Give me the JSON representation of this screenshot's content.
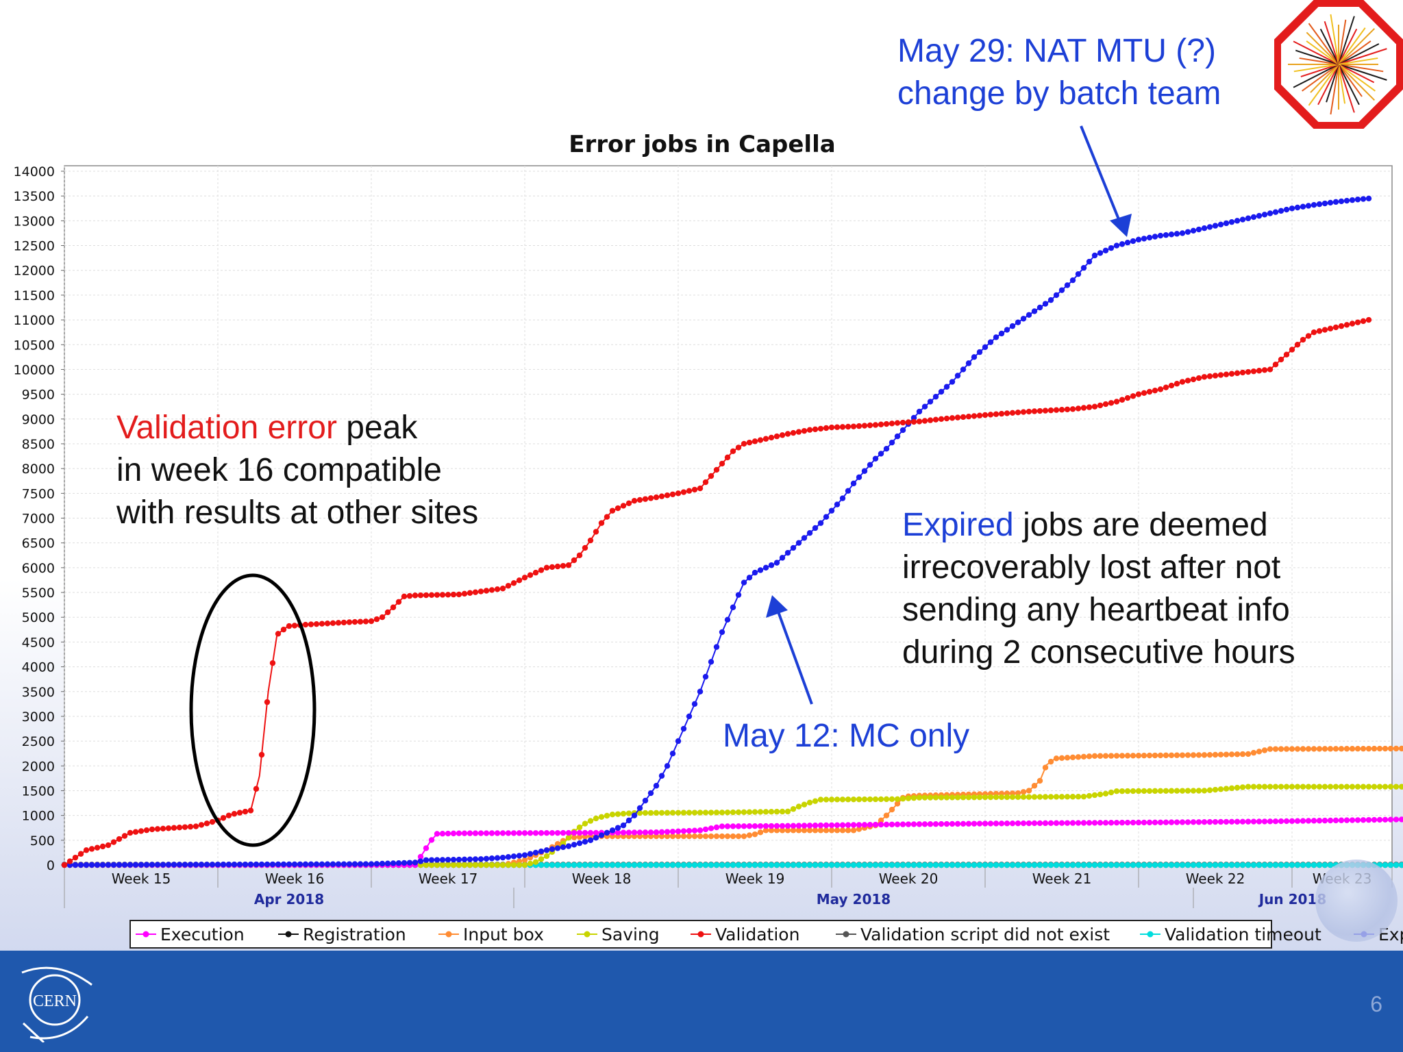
{
  "slide": {
    "number": "6",
    "annotations": {
      "nat_mtu": {
        "line1": "May 29: NAT MTU (?)",
        "line2": "change by batch team"
      },
      "validation_note": {
        "red_part": "Validation error",
        "rest_line1": " peak",
        "line2": "in week 16 compatible",
        "line3": "with results at other sites"
      },
      "expired_note": {
        "blue_part": "Expired",
        "rest_line1": " jobs are deemed",
        "line2": "irrecoverably lost after not",
        "line3": "sending any heartbeat info",
        "line4": "during 2 consecutive hours"
      },
      "may12": "May 12: MC only"
    },
    "logos": {
      "cern_text": "CERN"
    }
  },
  "chart_data": {
    "type": "line",
    "title": "Error jobs in Capella",
    "xlabel": "",
    "ylabel": "",
    "x_unit": "days since Apr 8 2018",
    "x_range": [
      0,
      61
    ],
    "ylim": [
      0,
      14000
    ],
    "yticks": [
      0,
      500,
      1000,
      1500,
      2000,
      2500,
      3000,
      3500,
      4000,
      4500,
      5000,
      5500,
      6000,
      6500,
      7000,
      7500,
      8000,
      8500,
      9000,
      9500,
      10000,
      10500,
      11000,
      11500,
      12000,
      12500,
      13000,
      13500,
      14000
    ],
    "week_ticks": [
      {
        "label": "Week 15",
        "start": 0,
        "end": 7
      },
      {
        "label": "Week 16",
        "start": 7,
        "end": 14
      },
      {
        "label": "Week 17",
        "start": 14,
        "end": 21
      },
      {
        "label": "Week 18",
        "start": 21,
        "end": 28
      },
      {
        "label": "Week 19",
        "start": 28,
        "end": 35
      },
      {
        "label": "Week 20",
        "start": 35,
        "end": 42
      },
      {
        "label": "Week 21",
        "start": 42,
        "end": 49
      },
      {
        "label": "Week 22",
        "start": 49,
        "end": 56
      },
      {
        "label": "Week 23",
        "start": 56,
        "end": 61
      }
    ],
    "months": [
      {
        "label": "Apr 2018",
        "start": 0,
        "end": 20.5
      },
      {
        "label": "May 2018",
        "start": 20.5,
        "end": 51.5
      },
      {
        "label": "Jun 2018",
        "start": 51.5,
        "end": 61
      }
    ],
    "grid": true,
    "legend_position": "bottom",
    "series": [
      {
        "name": "Execution",
        "color": "#ff00ff",
        "points": [
          [
            0,
            0
          ],
          [
            16,
            0
          ],
          [
            16.3,
            200
          ],
          [
            16.7,
            480
          ],
          [
            17,
            630
          ],
          [
            18,
            640
          ],
          [
            24,
            650
          ],
          [
            27,
            660
          ],
          [
            29,
            700
          ],
          [
            30,
            780
          ],
          [
            33,
            790
          ],
          [
            34.5,
            800
          ],
          [
            38,
            820
          ],
          [
            43,
            840
          ],
          [
            50,
            860
          ],
          [
            55,
            880
          ],
          [
            61,
            920
          ]
        ]
      },
      {
        "name": "Registration",
        "color": "#111111",
        "points": [
          [
            0,
            0
          ],
          [
            61,
            0
          ]
        ]
      },
      {
        "name": "Input box",
        "color": "#ff8c33",
        "points": [
          [
            0,
            0
          ],
          [
            20,
            0
          ],
          [
            21,
            100
          ],
          [
            22,
            300
          ],
          [
            23,
            550
          ],
          [
            24,
            580
          ],
          [
            31,
            580
          ],
          [
            31.5,
            620
          ],
          [
            32,
            700
          ],
          [
            36,
            700
          ],
          [
            37,
            800
          ],
          [
            37.5,
            1000
          ],
          [
            38.3,
            1380
          ],
          [
            39,
            1400
          ],
          [
            43.5,
            1450
          ],
          [
            44,
            1500
          ],
          [
            44.5,
            1700
          ],
          [
            44.8,
            2020
          ],
          [
            45.2,
            2150
          ],
          [
            47,
            2200
          ],
          [
            52,
            2220
          ],
          [
            54,
            2240
          ],
          [
            55,
            2340
          ],
          [
            61,
            2350
          ]
        ]
      },
      {
        "name": "Saving",
        "color": "#c8d400",
        "points": [
          [
            0,
            0
          ],
          [
            21,
            0
          ],
          [
            21.5,
            60
          ],
          [
            22,
            180
          ],
          [
            22.8,
            450
          ],
          [
            23.3,
            700
          ],
          [
            23.8,
            850
          ],
          [
            24.3,
            950
          ],
          [
            25,
            1020
          ],
          [
            26,
            1050
          ],
          [
            30,
            1060
          ],
          [
            33,
            1080
          ],
          [
            33.5,
            1180
          ],
          [
            34,
            1260
          ],
          [
            34.5,
            1320
          ],
          [
            38,
            1330
          ],
          [
            39,
            1360
          ],
          [
            43,
            1370
          ],
          [
            46.5,
            1380
          ],
          [
            47,
            1410
          ],
          [
            47.5,
            1440
          ],
          [
            48,
            1490
          ],
          [
            52,
            1500
          ],
          [
            53,
            1540
          ],
          [
            54,
            1580
          ],
          [
            61,
            1580
          ]
        ]
      },
      {
        "name": "Validation",
        "color": "#ee1111",
        "points": [
          [
            0,
            0
          ],
          [
            0.5,
            150
          ],
          [
            1,
            300
          ],
          [
            2,
            400
          ],
          [
            3,
            650
          ],
          [
            4,
            720
          ],
          [
            5,
            750
          ],
          [
            6,
            780
          ],
          [
            7,
            900
          ],
          [
            7.6,
            1020
          ],
          [
            8.5,
            1100
          ],
          [
            8.9,
            1800
          ],
          [
            9.3,
            3500
          ],
          [
            9.7,
            4650
          ],
          [
            10.2,
            4820
          ],
          [
            11,
            4850
          ],
          [
            13,
            4900
          ],
          [
            14,
            4920
          ],
          [
            14.5,
            5000
          ],
          [
            15,
            5200
          ],
          [
            15.5,
            5420
          ],
          [
            16,
            5440
          ],
          [
            18,
            5460
          ],
          [
            20,
            5580
          ],
          [
            21,
            5800
          ],
          [
            22,
            6000
          ],
          [
            23,
            6050
          ],
          [
            23.5,
            6250
          ],
          [
            24,
            6550
          ],
          [
            24.5,
            6900
          ],
          [
            25,
            7150
          ],
          [
            25.5,
            7250
          ],
          [
            26,
            7350
          ],
          [
            27,
            7420
          ],
          [
            28,
            7500
          ],
          [
            29,
            7600
          ],
          [
            29.5,
            7850
          ],
          [
            30,
            8100
          ],
          [
            30.5,
            8350
          ],
          [
            31,
            8500
          ],
          [
            32,
            8600
          ],
          [
            33,
            8700
          ],
          [
            34,
            8780
          ],
          [
            35,
            8830
          ],
          [
            36,
            8850
          ],
          [
            37,
            8880
          ],
          [
            38,
            8920
          ],
          [
            39,
            8950
          ],
          [
            40,
            9000
          ],
          [
            42,
            9080
          ],
          [
            44,
            9150
          ],
          [
            46,
            9200
          ],
          [
            47,
            9250
          ],
          [
            48,
            9350
          ],
          [
            49,
            9500
          ],
          [
            50,
            9600
          ],
          [
            51,
            9750
          ],
          [
            52,
            9850
          ],
          [
            53,
            9900
          ],
          [
            54,
            9950
          ],
          [
            55,
            10000
          ],
          [
            55.5,
            10200
          ],
          [
            56,
            10400
          ],
          [
            56.5,
            10600
          ],
          [
            57,
            10750
          ],
          [
            58,
            10850
          ],
          [
            59,
            10950
          ],
          [
            59.5,
            11000
          ]
        ]
      },
      {
        "name": "Validation script did not exist",
        "color": "#555555",
        "points": [
          [
            0,
            10
          ],
          [
            61,
            10
          ]
        ]
      },
      {
        "name": "Validation timeout",
        "color": "#00dddd",
        "points": [
          [
            0,
            0
          ],
          [
            61,
            0
          ]
        ]
      },
      {
        "name": "Expired",
        "color": "#1a1aee",
        "points": [
          [
            0,
            0
          ],
          [
            14,
            20
          ],
          [
            16,
            50
          ],
          [
            16.5,
            100
          ],
          [
            18,
            110
          ],
          [
            19,
            120
          ],
          [
            20,
            150
          ],
          [
            21,
            200
          ],
          [
            22,
            300
          ],
          [
            23,
            380
          ],
          [
            24,
            500
          ],
          [
            24.5,
            600
          ],
          [
            25,
            700
          ],
          [
            25.5,
            800
          ],
          [
            26,
            1000
          ],
          [
            26.5,
            1300
          ],
          [
            27,
            1600
          ],
          [
            27.5,
            2000
          ],
          [
            28,
            2500
          ],
          [
            28.5,
            3000
          ],
          [
            29,
            3500
          ],
          [
            29.5,
            4100
          ],
          [
            30,
            4700
          ],
          [
            30.5,
            5200
          ],
          [
            31,
            5700
          ],
          [
            31.5,
            5900
          ],
          [
            32,
            6000
          ],
          [
            32.5,
            6100
          ],
          [
            33,
            6300
          ],
          [
            33.5,
            6500
          ],
          [
            34,
            6700
          ],
          [
            34.5,
            6900
          ],
          [
            35,
            7150
          ],
          [
            35.5,
            7400
          ],
          [
            36,
            7700
          ],
          [
            36.5,
            7950
          ],
          [
            37,
            8200
          ],
          [
            37.5,
            8400
          ],
          [
            38,
            8650
          ],
          [
            38.5,
            8900
          ],
          [
            39,
            9150
          ],
          [
            39.5,
            9350
          ],
          [
            40,
            9550
          ],
          [
            40.5,
            9750
          ],
          [
            41,
            10000
          ],
          [
            41.5,
            10250
          ],
          [
            42,
            10450
          ],
          [
            42.5,
            10650
          ],
          [
            43,
            10800
          ],
          [
            43.5,
            10950
          ],
          [
            44,
            11100
          ],
          [
            44.5,
            11250
          ],
          [
            45,
            11400
          ],
          [
            45.5,
            11600
          ],
          [
            46,
            11800
          ],
          [
            46.5,
            12050
          ],
          [
            47,
            12300
          ],
          [
            47.5,
            12400
          ],
          [
            48,
            12500
          ],
          [
            49,
            12620
          ],
          [
            50,
            12700
          ],
          [
            51,
            12750
          ],
          [
            52,
            12850
          ],
          [
            53,
            12950
          ],
          [
            54,
            13050
          ],
          [
            55,
            13150
          ],
          [
            56,
            13250
          ],
          [
            57,
            13320
          ],
          [
            58,
            13380
          ],
          [
            59,
            13430
          ],
          [
            59.5,
            13450
          ]
        ]
      }
    ]
  }
}
